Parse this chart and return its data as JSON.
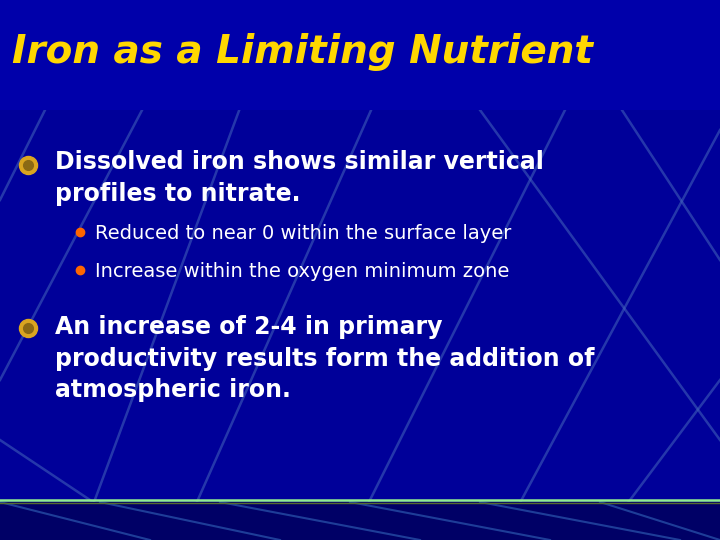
{
  "title": "Iron as a Limiting Nutrient",
  "title_color": "#FFD700",
  "title_fontsize": 28,
  "title_bold": true,
  "bg_color": "#000099",
  "bullet1_text": "Dissolved iron shows similar vertical\nprofiles to nitrate.",
  "bullet1_color": "#FFFFFF",
  "bullet1_fontsize": 17,
  "bullet1_bold": true,
  "sub_bullet1": "Reduced to near 0 within the surface layer",
  "sub_bullet2": "Increase within the oxygen minimum zone",
  "sub_bullet_color": "#FFFFFF",
  "sub_bullet_fontsize": 14,
  "sub_bullet_bold": false,
  "bullet2_text": "An increase of 2-4 in primary\nproductivity results form the addition of\natmospheric iron.",
  "bullet2_color": "#FFFFFF",
  "bullet2_fontsize": 17,
  "bullet2_bold": true,
  "bullet_marker_color": "#DAA520",
  "bullet_marker_inner": "#8B6914",
  "sub_bullet_marker_color": "#FF6600",
  "footer_line_color1": "#90EE90",
  "footer_line_color2": "#556B2F",
  "footer_bg_color": "#000066",
  "line_decor_color": "#4466BB",
  "figsize": [
    7.2,
    5.4
  ],
  "dpi": 100
}
